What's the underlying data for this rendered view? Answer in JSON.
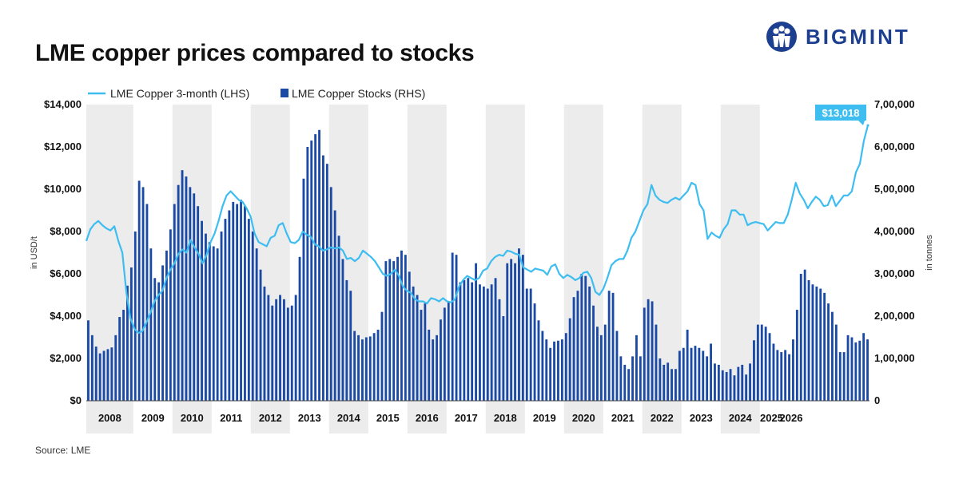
{
  "page": {
    "title": "LME copper prices compared to stocks",
    "source": "Source: LME",
    "brand": "BIGMINT"
  },
  "colors": {
    "line": "#3dbdf0",
    "bar": "#1a4aa6",
    "band": "#ececec",
    "title": "#111111",
    "brand": "#1d3f8f"
  },
  "chart_data": {
    "type": "bar+line",
    "title": "LME copper prices compared to stocks",
    "legend_position": "top-left",
    "series": [
      {
        "name": "LME Copper 3-month (LHS)",
        "type": "line",
        "axis": "left"
      },
      {
        "name": "LME Copper Stocks (RHS)",
        "type": "bar",
        "axis": "right"
      }
    ],
    "y_left": {
      "label": "in USD/t",
      "min": 0,
      "max": 14000,
      "ticks": [
        0,
        2000,
        4000,
        6000,
        8000,
        10000,
        12000,
        14000
      ],
      "tick_labels": [
        "$0",
        "$2,000",
        "$4,000",
        "$6,000",
        "$8,000",
        "$10,000",
        "$12,000",
        "$14,000"
      ]
    },
    "y_right": {
      "label": "in tonnes",
      "min": 0,
      "max": 700000,
      "ticks": [
        0,
        100000,
        200000,
        300000,
        400000,
        500000,
        600000,
        700000
      ],
      "tick_labels": [
        "0",
        "1,00,000",
        "2,00,000",
        "3,00,000",
        "4,00,000",
        "5,00,000",
        "6,00,000",
        "7,00,000"
      ]
    },
    "years": [
      {
        "label": "2008",
        "start": 0,
        "end": 12,
        "shade": true
      },
      {
        "label": "2009",
        "start": 12,
        "end": 22,
        "shade": false
      },
      {
        "label": "2010",
        "start": 22,
        "end": 32,
        "shade": true
      },
      {
        "label": "2011",
        "start": 32,
        "end": 42,
        "shade": false
      },
      {
        "label": "2012",
        "start": 42,
        "end": 52,
        "shade": true
      },
      {
        "label": "2013",
        "start": 52,
        "end": 62,
        "shade": false
      },
      {
        "label": "2014",
        "start": 62,
        "end": 72,
        "shade": true
      },
      {
        "label": "2015",
        "start": 72,
        "end": 82,
        "shade": false
      },
      {
        "label": "2016",
        "start": 82,
        "end": 92,
        "shade": true
      },
      {
        "label": "2017",
        "start": 92,
        "end": 102,
        "shade": false
      },
      {
        "label": "2018",
        "start": 102,
        "end": 112,
        "shade": true
      },
      {
        "label": "2019",
        "start": 112,
        "end": 122,
        "shade": false
      },
      {
        "label": "2020",
        "start": 122,
        "end": 132,
        "shade": true
      },
      {
        "label": "2021",
        "start": 132,
        "end": 142,
        "shade": false
      },
      {
        "label": "2022",
        "start": 142,
        "end": 152,
        "shade": true
      },
      {
        "label": "2023",
        "start": 152,
        "end": 162,
        "shade": false
      },
      {
        "label": "2024",
        "start": 162,
        "end": 172,
        "shade": true
      },
      {
        "label": "2025",
        "start": 172,
        "end": 178,
        "shade": false
      },
      {
        "label": "2026",
        "start": 178,
        "end": 182,
        "shade": false
      }
    ],
    "stocks": [
      190000,
      155000,
      128000,
      112000,
      118000,
      122000,
      126000,
      155000,
      198000,
      215000,
      272000,
      315000,
      400000,
      520000,
      505000,
      465000,
      360000,
      290000,
      280000,
      320000,
      355000,
      405000,
      465000,
      510000,
      545000,
      530000,
      505000,
      490000,
      460000,
      425000,
      395000,
      375000,
      365000,
      360000,
      400000,
      430000,
      450000,
      470000,
      465000,
      475000,
      460000,
      430000,
      400000,
      360000,
      310000,
      270000,
      250000,
      225000,
      240000,
      250000,
      240000,
      220000,
      225000,
      250000,
      340000,
      525000,
      600000,
      615000,
      630000,
      640000,
      580000,
      560000,
      505000,
      450000,
      390000,
      335000,
      285000,
      260000,
      165000,
      155000,
      145000,
      150000,
      152000,
      160000,
      168000,
      210000,
      330000,
      335000,
      330000,
      340000,
      355000,
      345000,
      305000,
      270000,
      250000,
      215000,
      230000,
      168000,
      145000,
      155000,
      192000,
      220000,
      235000,
      350000,
      345000,
      280000,
      285000,
      290000,
      280000,
      325000,
      275000,
      270000,
      265000,
      275000,
      290000,
      240000,
      200000,
      325000,
      335000,
      325000,
      360000,
      345000,
      265000,
      265000,
      230000,
      190000,
      165000,
      145000,
      125000,
      140000,
      142000,
      145000,
      160000,
      195000,
      245000,
      260000,
      300000,
      295000,
      270000,
      225000,
      175000,
      155000,
      180000,
      260000,
      255000,
      165000,
      105000,
      85000,
      75000,
      105000,
      155000,
      105000,
      220000,
      240000,
      235000,
      180000,
      100000,
      85000,
      90000,
      75000,
      75000,
      118000,
      125000,
      168000,
      125000,
      130000,
      125000,
      118000,
      105000,
      135000,
      88000,
      85000,
      72000,
      68000,
      75000,
      60000,
      80000,
      85000,
      62000,
      88000,
      143000,
      180000,
      180000,
      175000,
      160000,
      135000,
      120000,
      115000,
      120000,
      110000,
      145000,
      215000,
      300000,
      310000,
      285000,
      275000,
      270000,
      265000,
      255000,
      230000,
      210000,
      180000,
      115000,
      115000,
      155000,
      150000,
      138000,
      142000,
      160000,
      145000
    ],
    "price_points": [
      [
        0,
        7550
      ],
      [
        1,
        8100
      ],
      [
        2,
        8350
      ],
      [
        3,
        8500
      ],
      [
        4,
        8300
      ],
      [
        5,
        8150
      ],
      [
        6,
        8050
      ],
      [
        7,
        8250
      ],
      [
        8,
        7550
      ],
      [
        9,
        7000
      ],
      [
        10,
        5100
      ],
      [
        11,
        3900
      ],
      [
        12,
        3400
      ],
      [
        13,
        3200
      ],
      [
        14,
        3300
      ],
      [
        15,
        3700
      ],
      [
        16,
        4150
      ],
      [
        17,
        4700
      ],
      [
        18,
        5000
      ],
      [
        19,
        5200
      ],
      [
        20,
        5800
      ],
      [
        21,
        6200
      ],
      [
        22,
        6500
      ],
      [
        23,
        6950
      ],
      [
        24,
        7150
      ],
      [
        25,
        7000
      ],
      [
        26,
        7600
      ],
      [
        27,
        7250
      ],
      [
        28,
        6950
      ],
      [
        29,
        6500
      ],
      [
        30,
        6900
      ],
      [
        31,
        7500
      ],
      [
        32,
        7900
      ],
      [
        33,
        8500
      ],
      [
        34,
        9200
      ],
      [
        35,
        9700
      ],
      [
        36,
        9900
      ],
      [
        37,
        9700
      ],
      [
        38,
        9500
      ],
      [
        39,
        9400
      ],
      [
        40,
        9100
      ],
      [
        41,
        8700
      ],
      [
        42,
        7900
      ],
      [
        43,
        7500
      ],
      [
        44,
        7400
      ],
      [
        45,
        7300
      ],
      [
        46,
        7700
      ],
      [
        47,
        7800
      ],
      [
        48,
        8300
      ],
      [
        49,
        8400
      ],
      [
        50,
        7900
      ],
      [
        51,
        7500
      ],
      [
        52,
        7450
      ],
      [
        53,
        7600
      ],
      [
        54,
        8000
      ],
      [
        55,
        7850
      ],
      [
        56,
        7750
      ],
      [
        57,
        7400
      ],
      [
        58,
        7300
      ],
      [
        59,
        7100
      ],
      [
        60,
        7150
      ],
      [
        61,
        7250
      ],
      [
        62,
        7200
      ],
      [
        63,
        7250
      ],
      [
        64,
        7100
      ],
      [
        65,
        6700
      ],
      [
        66,
        6750
      ],
      [
        67,
        6600
      ],
      [
        68,
        6750
      ],
      [
        69,
        7100
      ],
      [
        70,
        6950
      ],
      [
        71,
        6800
      ],
      [
        72,
        6600
      ],
      [
        73,
        6300
      ],
      [
        74,
        6000
      ],
      [
        75,
        5900
      ],
      [
        76,
        6000
      ],
      [
        77,
        6200
      ],
      [
        78,
        5900
      ],
      [
        79,
        5400
      ],
      [
        80,
        5200
      ],
      [
        81,
        5100
      ],
      [
        82,
        4800
      ],
      [
        83,
        4700
      ],
      [
        84,
        4700
      ],
      [
        85,
        4600
      ],
      [
        86,
        4850
      ],
      [
        87,
        4800
      ],
      [
        88,
        4700
      ],
      [
        89,
        4850
      ],
      [
        90,
        4700
      ],
      [
        91,
        4650
      ],
      [
        92,
        4800
      ],
      [
        93,
        5400
      ],
      [
        94,
        5700
      ],
      [
        95,
        5900
      ],
      [
        96,
        5800
      ],
      [
        97,
        5700
      ],
      [
        98,
        5800
      ],
      [
        99,
        6150
      ],
      [
        100,
        6250
      ],
      [
        101,
        6600
      ],
      [
        102,
        6800
      ],
      [
        103,
        6900
      ],
      [
        104,
        6850
      ],
      [
        105,
        7100
      ],
      [
        106,
        7050
      ],
      [
        107,
        6950
      ],
      [
        108,
        6900
      ],
      [
        109,
        6300
      ],
      [
        110,
        6200
      ],
      [
        111,
        6100
      ],
      [
        112,
        6250
      ],
      [
        113,
        6200
      ],
      [
        114,
        6150
      ],
      [
        115,
        5950
      ],
      [
        116,
        6350
      ],
      [
        117,
        6450
      ],
      [
        118,
        6000
      ],
      [
        119,
        5800
      ],
      [
        120,
        5950
      ],
      [
        121,
        5850
      ],
      [
        122,
        5700
      ],
      [
        123,
        5800
      ],
      [
        124,
        6050
      ],
      [
        125,
        6100
      ],
      [
        126,
        5800
      ],
      [
        127,
        5150
      ],
      [
        128,
        5000
      ],
      [
        129,
        5300
      ],
      [
        130,
        5800
      ],
      [
        131,
        6400
      ],
      [
        132,
        6600
      ],
      [
        133,
        6700
      ],
      [
        134,
        6700
      ],
      [
        135,
        7100
      ],
      [
        136,
        7700
      ],
      [
        137,
        8000
      ],
      [
        138,
        8500
      ],
      [
        139,
        9000
      ],
      [
        140,
        9300
      ],
      [
        141,
        10200
      ],
      [
        142,
        9700
      ],
      [
        143,
        9500
      ],
      [
        144,
        9400
      ],
      [
        145,
        9350
      ],
      [
        146,
        9500
      ],
      [
        147,
        9600
      ],
      [
        148,
        9500
      ],
      [
        149,
        9700
      ],
      [
        150,
        9900
      ],
      [
        151,
        10300
      ],
      [
        152,
        10200
      ],
      [
        153,
        9300
      ],
      [
        154,
        9000
      ],
      [
        155,
        7650
      ],
      [
        156,
        7950
      ],
      [
        157,
        7800
      ],
      [
        158,
        7700
      ],
      [
        159,
        8100
      ],
      [
        160,
        8350
      ],
      [
        161,
        9000
      ],
      [
        162,
        9000
      ],
      [
        163,
        8800
      ],
      [
        164,
        8800
      ],
      [
        165,
        8300
      ],
      [
        166,
        8400
      ],
      [
        167,
        8450
      ],
      [
        168,
        8400
      ],
      [
        169,
        8350
      ],
      [
        170,
        8050
      ],
      [
        171,
        8250
      ],
      [
        172,
        8450
      ],
      [
        173,
        8400
      ],
      [
        174,
        8400
      ],
      [
        175,
        8800
      ],
      [
        176,
        9500
      ],
      [
        177,
        10300
      ],
      [
        178,
        9800
      ],
      [
        179,
        9500
      ],
      [
        180,
        9100
      ],
      [
        181,
        9400
      ]
    ],
    "price_tail": [
      [
        181,
        9400
      ],
      [
        182,
        9650
      ],
      [
        183,
        9500
      ],
      [
        184,
        9200
      ],
      [
        185,
        9250
      ],
      [
        186,
        9700
      ],
      [
        187,
        9200
      ],
      [
        188,
        9450
      ],
      [
        189,
        9700
      ],
      [
        190,
        9700
      ],
      [
        191,
        9900
      ],
      [
        192,
        10800
      ],
      [
        193,
        11200
      ],
      [
        194,
        12300
      ],
      [
        195,
        13018
      ]
    ],
    "callout": {
      "label": "$13,018",
      "value": 13018
    }
  }
}
